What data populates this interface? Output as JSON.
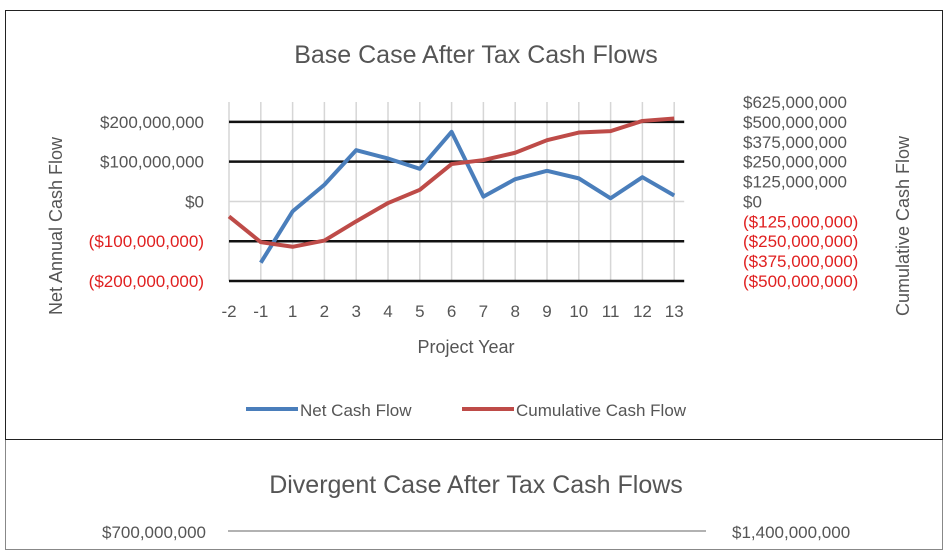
{
  "chart_data": [
    {
      "type": "line",
      "title": "Base Case After Tax Cash Flows",
      "xlabel": "Project Year",
      "ylabel": "Net Annual Cash Flow",
      "y2label": "Cumulative Cash Flow",
      "x": [
        -2,
        -1,
        1,
        2,
        3,
        4,
        5,
        6,
        7,
        8,
        9,
        10,
        11,
        12,
        13
      ],
      "x_tick_labels": [
        "-2",
        "-1",
        "1",
        "2",
        "3",
        "4",
        "5",
        "6",
        "7",
        "8",
        "9",
        "10",
        "11",
        "12",
        "13"
      ],
      "y_ticks": [
        200000000,
        100000000,
        0,
        -100000000,
        -200000000
      ],
      "y_tick_labels": [
        "$200,000,000",
        "$100,000,000",
        "$0",
        "($100,000,000)",
        "($200,000,000)"
      ],
      "ylim": [
        -200000000,
        250000000
      ],
      "y2_ticks": [
        625000000,
        500000000,
        375000000,
        250000000,
        125000000,
        0,
        -125000000,
        -250000000,
        -375000000,
        -500000000
      ],
      "y2_tick_labels": [
        "$625,000,000",
        "$500,000,000",
        "$375,000,000",
        "$250,000,000",
        "$125,000,000",
        "$0",
        "($125,000,000)",
        "($250,000,000)",
        "($375,000,000)",
        "($500,000,000)"
      ],
      "y2lim": [
        -500000000,
        625000000
      ],
      "negative_label_color": "#e02020",
      "grid": true,
      "legend": "bottom",
      "series": [
        {
          "name": "Net Cash Flow",
          "axis": "left",
          "color": "#4a7ebb",
          "values": [
            null,
            -154000000,
            -25000000,
            42000000,
            129000000,
            108000000,
            82000000,
            175000000,
            12000000,
            56000000,
            77000000,
            58000000,
            8000000,
            61000000,
            15000000
          ]
        },
        {
          "name": "Cumulative Cash Flow",
          "axis": "right",
          "color": "#be4b48",
          "values": [
            -94000000,
            -256000000,
            -285000000,
            -246000000,
            -125000000,
            -10000000,
            73000000,
            235000000,
            260000000,
            306000000,
            385000000,
            433000000,
            442000000,
            506000000,
            521000000
          ]
        }
      ]
    },
    {
      "type": "line",
      "title": "Divergent Case After Tax Cash Flows",
      "y_tick_labels": [
        "$700,000,000"
      ],
      "y2_tick_labels": [
        "$1,400,000,000"
      ]
    }
  ]
}
